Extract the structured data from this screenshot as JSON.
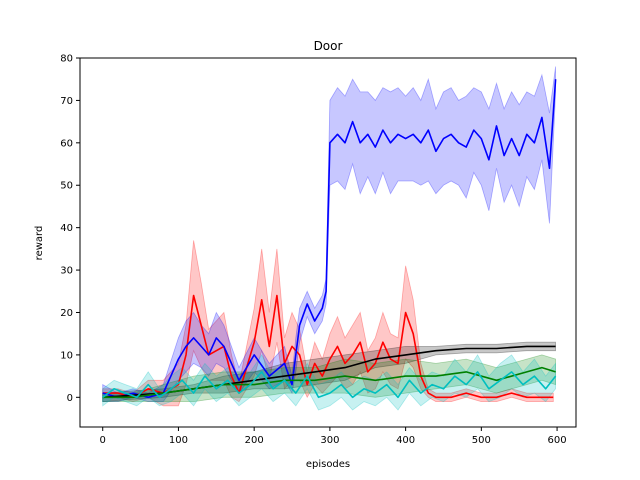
{
  "chart_data": {
    "type": "line",
    "title": "Door",
    "xlabel": "episodes",
    "ylabel": "reward",
    "xlim": [
      -30,
      625
    ],
    "ylim": [
      -7,
      80
    ],
    "xticks": [
      "0",
      "100",
      "200",
      "300",
      "400",
      "500",
      "600"
    ],
    "yticks": [
      "0",
      "10",
      "20",
      "30",
      "40",
      "50",
      "60",
      "70",
      "80"
    ],
    "grid": false,
    "legend": "none",
    "series": [
      {
        "color": "#ff0000",
        "x": [
          0,
          20,
          40,
          60,
          80,
          100,
          110,
          120,
          130,
          140,
          160,
          170,
          180,
          200,
          210,
          220,
          230,
          240,
          250,
          260,
          270,
          280,
          290,
          300,
          310,
          320,
          330,
          340,
          350,
          360,
          370,
          380,
          390,
          400,
          410,
          420,
          430,
          440,
          460,
          480,
          500,
          520,
          540,
          560,
          580,
          595
        ],
        "y": [
          1,
          1,
          0,
          2,
          1,
          3,
          10,
          24,
          17,
          10,
          12,
          5,
          1,
          13,
          23,
          12,
          24,
          8,
          12,
          10,
          3,
          8,
          5,
          9,
          12,
          8,
          10,
          13,
          6,
          8,
          13,
          9,
          8,
          20,
          15,
          5,
          1,
          0,
          0,
          1,
          0,
          0,
          1,
          0,
          0,
          0
        ],
        "band": [
          1,
          1,
          1,
          2,
          3,
          5,
          7,
          13,
          10,
          6,
          8,
          5,
          2,
          8,
          12,
          8,
          11,
          6,
          8,
          6,
          3,
          5,
          4,
          6,
          7,
          6,
          7,
          7,
          5,
          6,
          7,
          6,
          6,
          11,
          8,
          3,
          1,
          1,
          1,
          1,
          1,
          1,
          1,
          1,
          1,
          1
        ]
      },
      {
        "color": "#0000ff",
        "x": [
          0,
          20,
          40,
          60,
          80,
          100,
          110,
          120,
          130,
          140,
          150,
          160,
          180,
          200,
          220,
          240,
          250,
          255,
          260,
          270,
          280,
          290,
          295,
          300,
          310,
          320,
          330,
          340,
          350,
          360,
          370,
          380,
          390,
          400,
          410,
          420,
          430,
          440,
          450,
          460,
          470,
          480,
          490,
          500,
          510,
          520,
          530,
          540,
          550,
          560,
          570,
          580,
          590,
          598
        ],
        "y": [
          1,
          0,
          1,
          0,
          1,
          9,
          12,
          14,
          12,
          10,
          14,
          12,
          4,
          10,
          5,
          8,
          3,
          10,
          17,
          22,
          18,
          21,
          25,
          60,
          62,
          60,
          65,
          60,
          62,
          59,
          63,
          60,
          62,
          61,
          62,
          60,
          63,
          58,
          61,
          62,
          60,
          59,
          63,
          61,
          56,
          64,
          57,
          61,
          57,
          62,
          60,
          66,
          54,
          75
        ],
        "band": [
          2,
          1,
          1,
          1,
          2,
          5,
          6,
          6,
          5,
          5,
          6,
          5,
          3,
          4,
          3,
          4,
          2,
          4,
          4,
          3,
          3,
          3,
          3,
          10,
          11,
          11,
          10,
          12,
          10,
          11,
          10,
          12,
          11,
          10,
          11,
          10,
          12,
          10,
          11,
          11,
          10,
          12,
          10,
          11,
          12,
          10,
          11,
          11,
          12,
          10,
          11,
          10,
          13,
          3
        ]
      },
      {
        "color": "#000000",
        "x": [
          0,
          40,
          80,
          120,
          160,
          200,
          240,
          280,
          320,
          360,
          400,
          440,
          480,
          520,
          560,
          598
        ],
        "y": [
          0,
          0.5,
          1,
          2,
          3,
          4,
          5,
          6,
          7,
          9,
          10,
          11,
          11.5,
          11.5,
          12,
          12
        ],
        "band": [
          1,
          1,
          1,
          1,
          2,
          2,
          3,
          3,
          3,
          2,
          2,
          1,
          1,
          1,
          1,
          1
        ]
      },
      {
        "color": "#008000",
        "x": [
          0,
          40,
          80,
          120,
          160,
          200,
          240,
          280,
          320,
          360,
          400,
          440,
          480,
          520,
          560,
          580,
          598
        ],
        "y": [
          0,
          0,
          1,
          2,
          3,
          3,
          4,
          4,
          5,
          4,
          5,
          5,
          6,
          4,
          6,
          7,
          6
        ],
        "band": [
          1,
          1,
          2,
          3,
          3,
          3,
          3,
          3,
          4,
          4,
          4,
          3,
          3,
          3,
          3,
          3,
          3
        ]
      },
      {
        "color": "#00bfbf",
        "x": [
          0,
          15,
          30,
          45,
          60,
          75,
          90,
          105,
          120,
          135,
          150,
          165,
          180,
          195,
          210,
          225,
          240,
          255,
          270,
          285,
          300,
          315,
          330,
          345,
          360,
          375,
          390,
          405,
          420,
          435,
          450,
          465,
          480,
          495,
          510,
          525,
          540,
          555,
          570,
          585,
          598
        ],
        "y": [
          0,
          2,
          1,
          0,
          3,
          0,
          2,
          4,
          1,
          5,
          2,
          4,
          1,
          3,
          6,
          2,
          4,
          1,
          5,
          0,
          1,
          3,
          0,
          2,
          1,
          3,
          0,
          4,
          1,
          3,
          2,
          5,
          3,
          6,
          2,
          4,
          6,
          3,
          5,
          2,
          5
        ],
        "band": [
          2,
          2,
          2,
          2,
          3,
          2,
          3,
          3,
          3,
          3,
          3,
          3,
          3,
          3,
          4,
          3,
          3,
          3,
          3,
          3,
          3,
          3,
          3,
          3,
          3,
          3,
          3,
          3,
          3,
          3,
          3,
          4,
          3,
          4,
          3,
          4,
          4,
          3,
          4,
          3,
          3
        ]
      }
    ]
  }
}
